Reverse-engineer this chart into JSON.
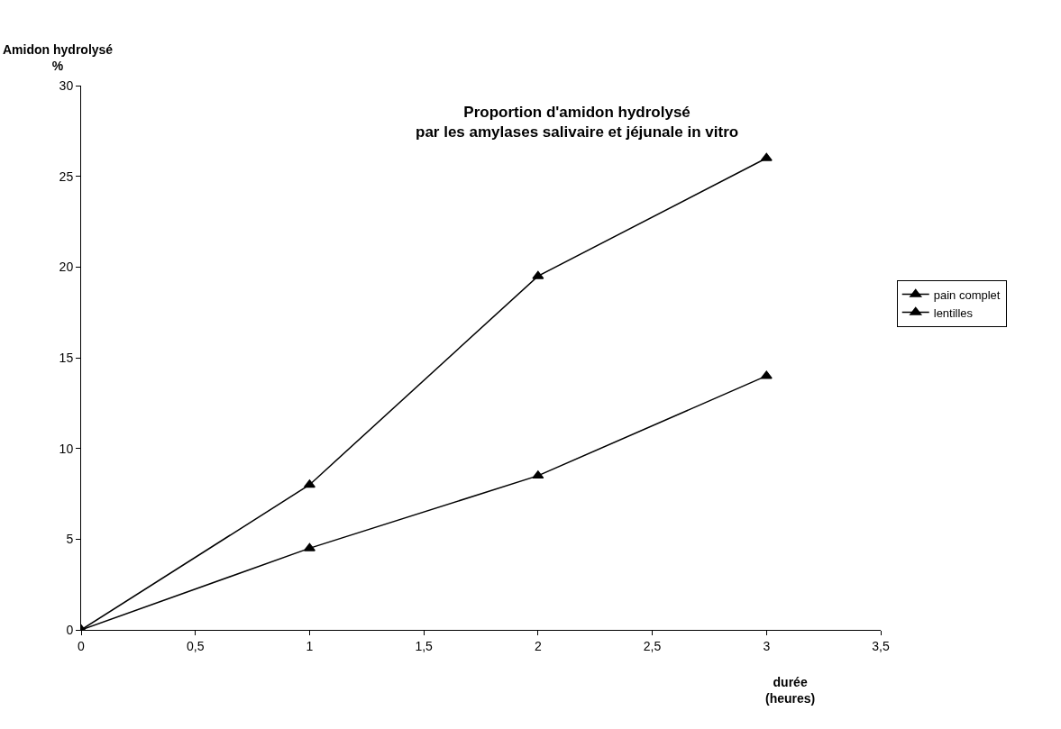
{
  "chart_data": {
    "type": "line",
    "title": "Proportion d'amidon hydrolysé\npar les amylases salivaire et jéjunale in vitro",
    "xlabel": "durée\n(heures)",
    "ylabel": "Amidon hydrolysé\n%",
    "x": [
      0,
      1,
      2,
      3
    ],
    "series": [
      {
        "name": "pain complet",
        "color": "#000000",
        "values": [
          0,
          8,
          19.5,
          26
        ]
      },
      {
        "name": "lentilles",
        "color": "#000000",
        "values": [
          0,
          4.5,
          8.5,
          14
        ]
      }
    ],
    "xlim": [
      0,
      3.5
    ],
    "xticks": [
      0,
      {
        "value": 0.5,
        "label": "0,5"
      },
      1,
      {
        "value": 1.5,
        "label": "1,5"
      },
      2,
      {
        "value": 2.5,
        "label": "2,5"
      },
      3,
      {
        "value": 3.5,
        "label": "3,5"
      }
    ],
    "ylim": [
      0,
      30
    ],
    "yticks": [
      0,
      5,
      10,
      15,
      20,
      25,
      30
    ],
    "legend": "right",
    "marker": "triangle",
    "line_style": "solid"
  }
}
